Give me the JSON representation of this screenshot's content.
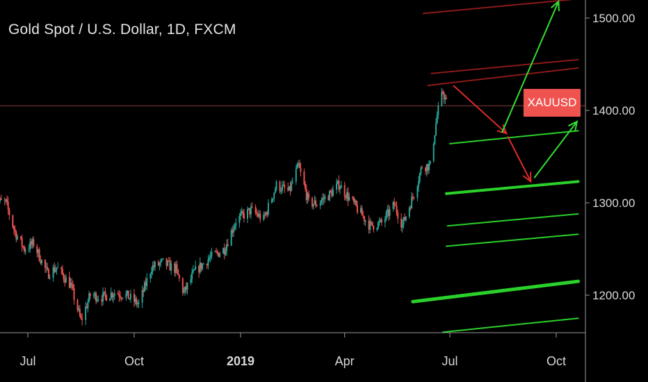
{
  "header": {
    "title": "Gold Spot / U.S. Dollar, 1D, FXCM"
  },
  "badge": {
    "label": "XAUUSD",
    "color": "#ef5350"
  },
  "colors": {
    "background": "#000000",
    "up": "#26a69a",
    "down": "#ef5350",
    "green_line": "#2bd12b",
    "red_line": "#8b1a1a",
    "axis_text": "#d9d9d9"
  },
  "chart_data": {
    "type": "candlestick",
    "title": "Gold Spot / U.S. Dollar, 1D, FXCM",
    "symbol": "XAUUSD",
    "y_ticks": [
      1200,
      1300,
      1400,
      1500
    ],
    "y_tick_labels": [
      "1200.00",
      "1300.00",
      "1400.00",
      "1500.00"
    ],
    "x_ticks": [
      {
        "label": "Jul",
        "date": "2018-07-01",
        "bold": false
      },
      {
        "label": "Oct",
        "date": "2018-10-01",
        "bold": false
      },
      {
        "label": "2019",
        "date": "2019-01-01",
        "bold": true
      },
      {
        "label": "Apr",
        "date": "2019-04-01",
        "bold": false
      },
      {
        "label": "Jul",
        "date": "2019-07-01",
        "bold": false
      },
      {
        "label": "Oct",
        "date": "2019-10-01",
        "bold": false
      }
    ],
    "price_path": [
      [
        "2018-06-01",
        1302
      ],
      [
        "2018-06-12",
        1300
      ],
      [
        "2018-06-20",
        1268
      ],
      [
        "2018-06-28",
        1250
      ],
      [
        "2018-07-06",
        1256
      ],
      [
        "2018-07-18",
        1223
      ],
      [
        "2018-07-26",
        1230
      ],
      [
        "2018-08-07",
        1211
      ],
      [
        "2018-08-16",
        1172
      ],
      [
        "2018-08-24",
        1200
      ],
      [
        "2018-09-04",
        1198
      ],
      [
        "2018-09-14",
        1203
      ],
      [
        "2018-09-24",
        1200
      ],
      [
        "2018-10-05",
        1190
      ],
      [
        "2018-10-16",
        1230
      ],
      [
        "2018-10-26",
        1235
      ],
      [
        "2018-11-06",
        1228
      ],
      [
        "2018-11-13",
        1202
      ],
      [
        "2018-11-22",
        1225
      ],
      [
        "2018-12-05",
        1240
      ],
      [
        "2018-12-18",
        1250
      ],
      [
        "2018-12-28",
        1281
      ],
      [
        "2019-01-10",
        1292
      ],
      [
        "2019-01-21",
        1282
      ],
      [
        "2019-02-01",
        1319
      ],
      [
        "2019-02-12",
        1312
      ],
      [
        "2019-02-20",
        1340
      ],
      [
        "2019-03-01",
        1300
      ],
      [
        "2019-03-08",
        1299
      ],
      [
        "2019-03-20",
        1310
      ],
      [
        "2019-03-27",
        1320
      ],
      [
        "2019-04-08",
        1300
      ],
      [
        "2019-04-23",
        1275
      ],
      [
        "2019-05-03",
        1278
      ],
      [
        "2019-05-14",
        1298
      ],
      [
        "2019-05-21",
        1276
      ],
      [
        "2019-05-31",
        1310
      ],
      [
        "2019-06-07",
        1340
      ],
      [
        "2019-06-14",
        1340
      ],
      [
        "2019-06-20",
        1395
      ],
      [
        "2019-06-25",
        1420
      ],
      [
        "2019-06-28",
        1408
      ]
    ],
    "horizontal_line": {
      "price": 1405,
      "color": "#5a2a24"
    },
    "trend_lines": [
      {
        "color": "red",
        "from": [
          "2019-06-08",
          1505
        ],
        "to": [
          "2019-10-14",
          1520
        ],
        "width": 2
      },
      {
        "color": "red",
        "from": [
          "2019-06-15",
          1440
        ],
        "to": [
          "2019-10-20",
          1455
        ],
        "width": 2
      },
      {
        "color": "red",
        "from": [
          "2019-06-12",
          1427
        ],
        "to": [
          "2019-10-20",
          1446
        ],
        "width": 2
      },
      {
        "color": "green",
        "from": [
          "2019-07-01",
          1364
        ],
        "to": [
          "2019-10-20",
          1378
        ],
        "width": 2
      },
      {
        "color": "green",
        "from": [
          "2019-06-28",
          1310
        ],
        "to": [
          "2019-10-20",
          1323
        ],
        "width": 4
      },
      {
        "color": "green",
        "from": [
          "2019-06-29",
          1275
        ],
        "to": [
          "2019-10-20",
          1288
        ],
        "width": 2
      },
      {
        "color": "green",
        "from": [
          "2019-06-28",
          1253
        ],
        "to": [
          "2019-10-20",
          1266
        ],
        "width": 2
      },
      {
        "color": "green",
        "from": [
          "2019-05-30",
          1193
        ],
        "to": [
          "2019-10-20",
          1215
        ],
        "width": 5
      },
      {
        "color": "green",
        "from": [
          "2019-06-25",
          1160
        ],
        "to": [
          "2019-10-20",
          1175
        ],
        "width": 2
      }
    ],
    "arrows": [
      {
        "color": "red",
        "from": [
          "2019-07-04",
          1427
        ],
        "to": [
          "2019-08-19",
          1375
        ]
      },
      {
        "color": "red",
        "from": [
          "2019-08-20",
          1372
        ],
        "to": [
          "2019-09-09",
          1323
        ]
      },
      {
        "color": "green",
        "from": [
          "2019-08-15",
          1376
        ],
        "to": [
          "2019-10-03",
          1518
        ]
      },
      {
        "color": "green",
        "from": [
          "2019-09-12",
          1327
        ],
        "to": [
          "2019-10-19",
          1388
        ]
      }
    ]
  }
}
